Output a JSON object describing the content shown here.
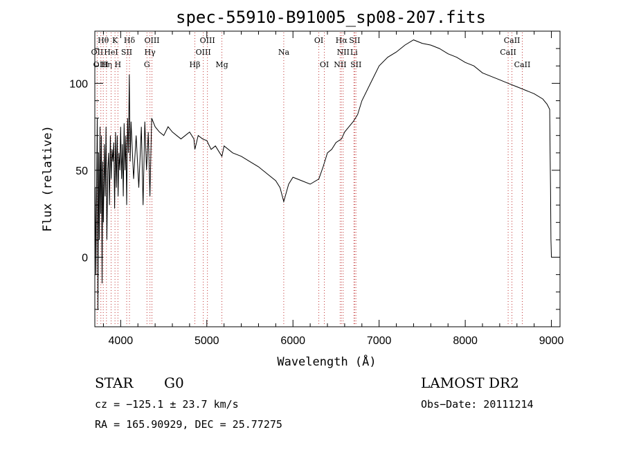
{
  "chart_data": {
    "type": "line",
    "title": "spec-55910-B91005_sp08-207.fits",
    "xlabel": "Wavelength (Å)",
    "ylabel": "Flux (relative)",
    "xlim": [
      3700,
      9100
    ],
    "ylim": [
      -40,
      130
    ],
    "x_ticks": [
      4000,
      5000,
      6000,
      7000,
      8000,
      9000
    ],
    "y_ticks": [
      0,
      50,
      100
    ],
    "grid": false,
    "series": [
      {
        "x": [
          3705,
          3712,
          3720,
          3728,
          3736,
          3744,
          3752,
          3760,
          3768,
          3776,
          3784,
          3792,
          3800,
          3810,
          3820,
          3830,
          3840,
          3850,
          3860,
          3870,
          3880,
          3890,
          3900,
          3910,
          3920,
          3930,
          3940,
          3950,
          3960,
          3970,
          3980,
          3990,
          4000,
          4010,
          4020,
          4030,
          4040,
          4050,
          4060,
          4070,
          4080,
          4090,
          4100,
          4110,
          4120,
          4150,
          4180,
          4210,
          4240,
          4260,
          4280,
          4300,
          4320,
          4340,
          4360,
          4400,
          4450,
          4500,
          4550,
          4600,
          4650,
          4700,
          4750,
          4800,
          4850,
          4861,
          4900,
          4950,
          5000,
          5050,
          5100,
          5150,
          5175,
          5200,
          5300,
          5400,
          5500,
          5600,
          5700,
          5800,
          5850,
          5893,
          5950,
          6000,
          6100,
          6200,
          6300,
          6350,
          6400,
          6450,
          6500,
          6563,
          6600,
          6650,
          6700,
          6750,
          6800,
          6900,
          7000,
          7100,
          7200,
          7300,
          7400,
          7500,
          7600,
          7700,
          7800,
          7900,
          8000,
          8100,
          8200,
          8300,
          8400,
          8500,
          8600,
          8700,
          8800,
          8900,
          8950,
          8980,
          8985,
          8990,
          8995,
          9000,
          9005
        ],
        "y": [
          40,
          -10,
          35,
          80,
          -30,
          60,
          10,
          75,
          25,
          70,
          -15,
          55,
          20,
          65,
          35,
          75,
          10,
          50,
          60,
          30,
          70,
          45,
          62,
          55,
          66,
          28,
          72,
          40,
          70,
          35,
          60,
          50,
          75,
          45,
          65,
          35,
          77,
          50,
          70,
          30,
          80,
          60,
          105,
          55,
          78,
          45,
          70,
          40,
          75,
          30,
          78,
          50,
          72,
          35,
          80,
          75,
          72,
          70,
          75,
          72,
          70,
          68,
          70,
          72,
          68,
          62,
          70,
          68,
          67,
          62,
          64,
          60,
          58,
          64,
          60,
          58,
          55,
          52,
          48,
          44,
          40,
          32,
          42,
          46,
          44,
          42,
          45,
          52,
          60,
          62,
          66,
          68,
          72,
          75,
          78,
          82,
          90,
          100,
          110,
          115,
          118,
          122,
          125,
          123,
          122,
          120,
          117,
          115,
          112,
          110,
          106,
          104,
          102,
          100,
          98,
          96,
          94,
          91,
          88,
          85,
          60,
          40,
          10,
          0,
          0
        ]
      }
    ],
    "line_markers": [
      {
        "label": "OII",
        "x": 3727,
        "row": 2
      },
      {
        "label": "Hθ",
        "x": 3798,
        "row": 1
      },
      {
        "label": "OIII",
        "x": 3770,
        "row": 3
      },
      {
        "label": "Hη",
        "x": 3835,
        "row": 3
      },
      {
        "label": "HeI",
        "x": 3889,
        "row": 2
      },
      {
        "label": "K",
        "x": 3934,
        "row": 1
      },
      {
        "label": "H",
        "x": 3968,
        "row": 3
      },
      {
        "label": "SII",
        "x": 4070,
        "row": 2
      },
      {
        "label": "Hδ",
        "x": 4102,
        "row": 1
      },
      {
        "label": "OIII",
        "x": 4363,
        "row": 1
      },
      {
        "label": "Hγ",
        "x": 4340,
        "row": 2
      },
      {
        "label": "G",
        "x": 4305,
        "row": 3
      },
      {
        "label": "Hβ",
        "x": 4861,
        "row": 3
      },
      {
        "label": "OIII",
        "x": 5007,
        "row": 1
      },
      {
        "label": "OIII",
        "x": 4959,
        "row": 2
      },
      {
        "label": "Mg",
        "x": 5175,
        "row": 3
      },
      {
        "label": "Na",
        "x": 5893,
        "row": 2
      },
      {
        "label": "OI",
        "x": 6300,
        "row": 1
      },
      {
        "label": "OI",
        "x": 6364,
        "row": 3
      },
      {
        "label": "Hα",
        "x": 6563,
        "row": 1
      },
      {
        "label": "SII",
        "x": 6716,
        "row": 1
      },
      {
        "label": "NII",
        "x": 6583,
        "row": 2
      },
      {
        "label": "Li",
        "x": 6708,
        "row": 2
      },
      {
        "label": "NII",
        "x": 6548,
        "row": 3
      },
      {
        "label": "SII",
        "x": 6731,
        "row": 3
      },
      {
        "label": "CaII",
        "x": 8542,
        "row": 1
      },
      {
        "label": "CaII",
        "x": 8498,
        "row": 2
      },
      {
        "label": "CaII",
        "x": 8662,
        "row": 3
      }
    ]
  },
  "info": {
    "object_type": "STAR",
    "subclass": "G0",
    "survey": "LAMOST DR2",
    "redshift": "cz = −125.1 ± 23.7 km/s",
    "obs_date": "Obs−Date: 20111214",
    "coords": "RA = 165.90929, DEC =  25.77275"
  }
}
